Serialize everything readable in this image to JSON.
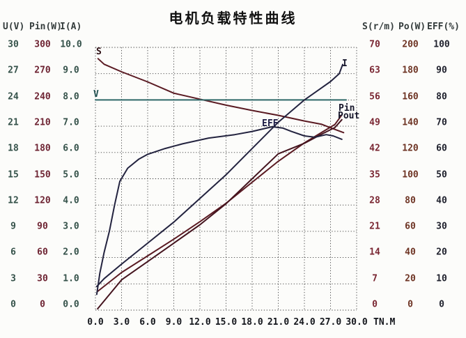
{
  "title": "电机负载特性曲线",
  "chart_data": {
    "type": "line",
    "title": "电机负载特性曲线",
    "grid": true,
    "x_axis": {
      "label": "TN.M",
      "min": 0,
      "max": 30,
      "ticks": [
        "0.0",
        "3.0",
        "6.0",
        "9.0",
        "12.0",
        "15.0",
        "18.0",
        "21.0",
        "24.0",
        "27.0",
        "30.0"
      ]
    },
    "axes_left": [
      {
        "name": "U(V)",
        "max": 30,
        "color": "#35524a",
        "ticks": [
          "30",
          "27",
          "24",
          "21",
          "18",
          "15",
          "12",
          "9",
          "6",
          "3",
          "0"
        ]
      },
      {
        "name": "Pin(W)",
        "max": 300,
        "color": "#6e2433",
        "ticks": [
          "300",
          "270",
          "240",
          "210",
          "180",
          "150",
          "120",
          "90",
          "60",
          "30",
          "0"
        ]
      },
      {
        "name": "I(A)",
        "max": 10,
        "color": "#35524a",
        "ticks": [
          "10.0",
          "9.0",
          "8.0",
          "7.0",
          "6.0",
          "5.0",
          "4.0",
          "3.0",
          "2.0",
          "1.0",
          "0.0"
        ]
      }
    ],
    "axes_right": [
      {
        "name": "S(r/m)",
        "max": 70,
        "color": "#7a2733",
        "ticks": [
          "70",
          "63",
          "56",
          "49",
          "42",
          "35",
          "28",
          "21",
          "14",
          "7",
          "0"
        ]
      },
      {
        "name": "Po(W)",
        "max": 200,
        "color": "#6e3424",
        "ticks": [
          "200",
          "180",
          "160",
          "140",
          "120",
          "100",
          "80",
          "60",
          "40",
          "20",
          "0"
        ]
      },
      {
        "name": "EFF(%)",
        "max": 100,
        "color": "#20222e",
        "ticks": [
          "100",
          "90",
          "80",
          "70",
          "60",
          "50",
          "40",
          "30",
          "20",
          "10",
          "0"
        ]
      }
    ],
    "series": [
      {
        "name": "S",
        "axis": "S(r/m)",
        "unit": "r/m",
        "max": 70,
        "color": "#5a1a22",
        "points": [
          [
            0.3,
            67
          ],
          [
            1,
            65.5
          ],
          [
            3,
            63.5
          ],
          [
            6,
            60.8
          ],
          [
            9,
            57.8
          ],
          [
            12,
            56.2
          ],
          [
            15,
            54.6
          ],
          [
            18,
            53.2
          ],
          [
            21,
            51.9
          ],
          [
            24,
            50.4
          ],
          [
            26,
            49.5
          ],
          [
            27,
            48.6
          ],
          [
            28.5,
            47.3
          ]
        ]
      },
      {
        "name": "V",
        "axis": "U(V)",
        "unit": "V",
        "max": 30,
        "color": "#2e6868",
        "points": [
          [
            0,
            24
          ],
          [
            28.8,
            24
          ]
        ]
      },
      {
        "name": "I",
        "axis": "I(A)",
        "unit": "A",
        "max": 10,
        "color": "#23233f",
        "points": [
          [
            0.15,
            0.9
          ],
          [
            1,
            1.2
          ],
          [
            3,
            1.75
          ],
          [
            6,
            2.55
          ],
          [
            9,
            3.35
          ],
          [
            12,
            4.25
          ],
          [
            15,
            5.15
          ],
          [
            18,
            6.15
          ],
          [
            21,
            7.15
          ],
          [
            24,
            8.0
          ],
          [
            25.5,
            8.35
          ],
          [
            27,
            8.7
          ],
          [
            28,
            9.0
          ],
          [
            28.4,
            9.35
          ]
        ]
      },
      {
        "name": "Pin",
        "axis": "Pin(W)",
        "unit": "W",
        "max": 300,
        "color": "#5a1a22",
        "points": [
          [
            0.2,
            21
          ],
          [
            3,
            43
          ],
          [
            6,
            62
          ],
          [
            9,
            81
          ],
          [
            12,
            101
          ],
          [
            15,
            122
          ],
          [
            18,
            146
          ],
          [
            21,
            170
          ],
          [
            24,
            191
          ],
          [
            26,
            203
          ],
          [
            27.5,
            212
          ],
          [
            28.3,
            223
          ]
        ]
      },
      {
        "name": "Pout",
        "axis": "Po(W)",
        "unit": "W",
        "max": 200,
        "color": "#44141e",
        "points": [
          [
            0.25,
            1
          ],
          [
            3,
            23
          ],
          [
            6,
            37
          ],
          [
            9,
            51
          ],
          [
            12,
            65
          ],
          [
            15,
            81
          ],
          [
            18,
            100
          ],
          [
            21,
            119
          ],
          [
            24,
            127
          ],
          [
            26,
            134
          ],
          [
            27.5,
            139
          ],
          [
            28.3,
            145
          ]
        ]
      },
      {
        "name": "EFF",
        "axis": "EFF(%)",
        "unit": "%",
        "max": 100,
        "color": "#23233f",
        "points": [
          [
            0.15,
            6
          ],
          [
            0.5,
            14
          ],
          [
            1,
            22
          ],
          [
            1.6,
            30
          ],
          [
            2.2,
            40
          ],
          [
            2.8,
            49
          ],
          [
            3.7,
            54
          ],
          [
            5,
            57.5
          ],
          [
            6,
            59.3
          ],
          [
            8,
            61.5
          ],
          [
            10,
            63.3
          ],
          [
            13,
            65.5
          ],
          [
            16,
            66.8
          ],
          [
            18,
            68
          ],
          [
            20.3,
            69.8
          ],
          [
            21.5,
            69.3
          ],
          [
            22.5,
            68
          ],
          [
            24,
            66.3
          ],
          [
            25.2,
            65.8
          ],
          [
            26.5,
            66.8
          ],
          [
            27.3,
            66.3
          ],
          [
            28.3,
            65
          ]
        ]
      }
    ],
    "curve_labels": [
      {
        "text": "S",
        "color": "#2e0f14"
      },
      {
        "text": "V",
        "color": "#1f4f4f"
      },
      {
        "text": "I",
        "color": "#15152a"
      },
      {
        "text": "Pin",
        "color": "#15152a"
      },
      {
        "text": "Pout",
        "color": "#15152a"
      },
      {
        "text": "EFF",
        "color": "#1b1b45"
      }
    ],
    "x_unit_label": "TN.M"
  }
}
